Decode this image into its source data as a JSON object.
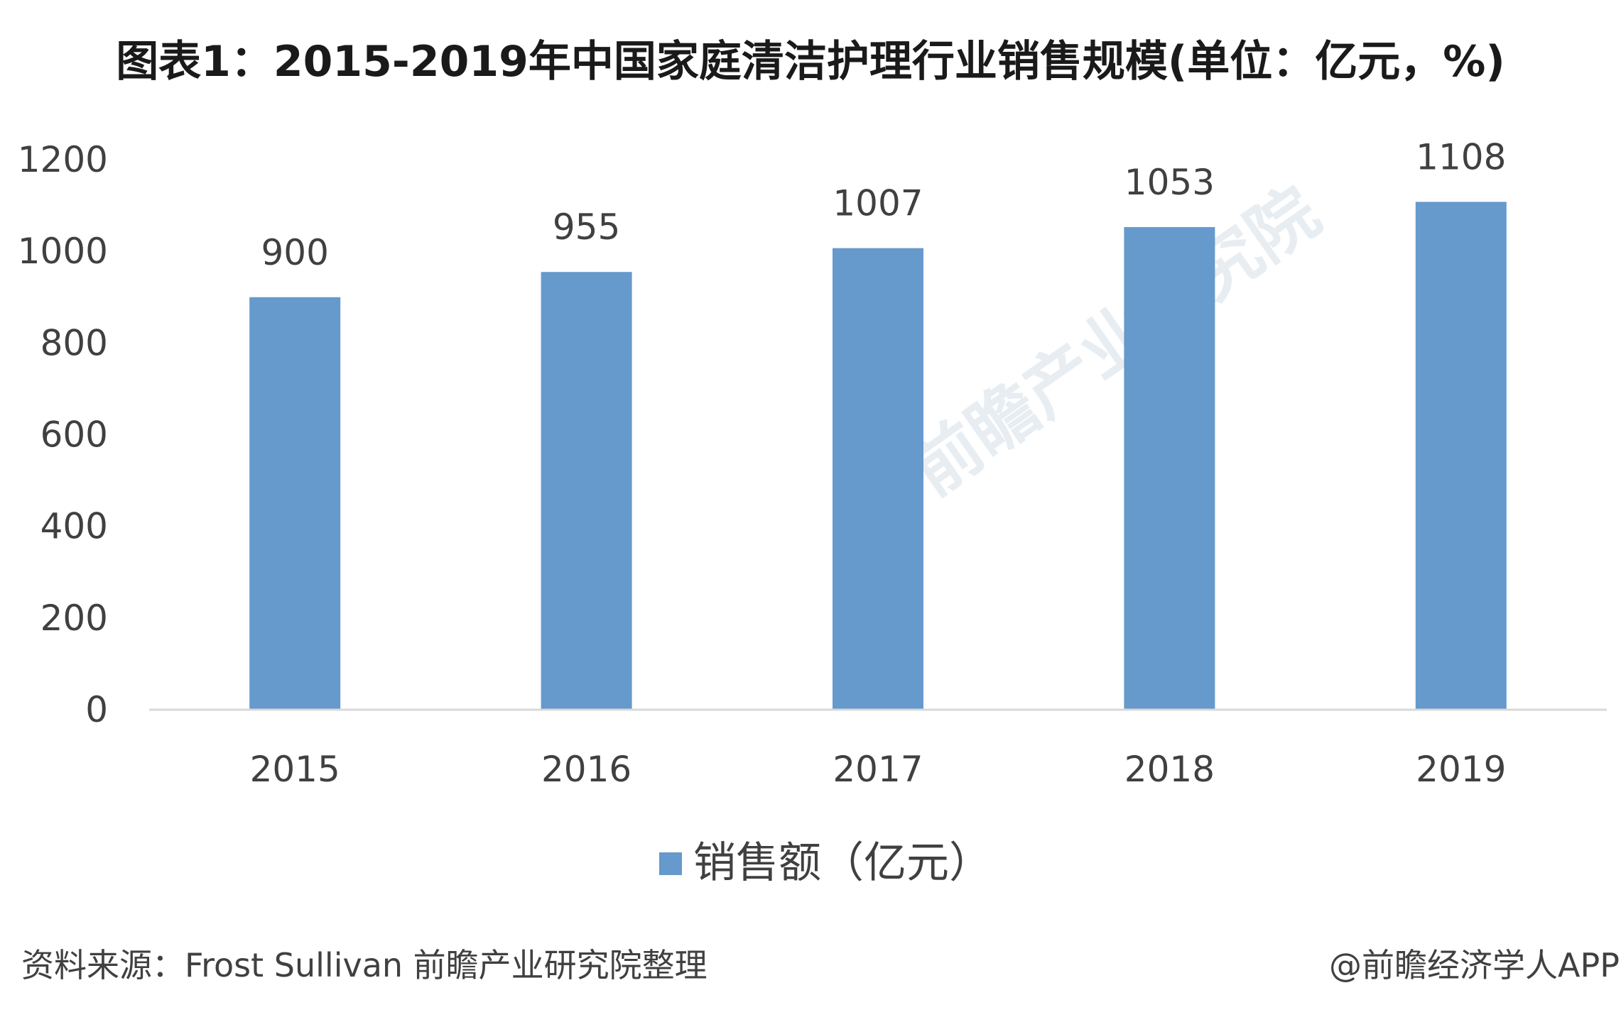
{
  "title": "图表1：2015-2019年中国家庭清洁护理行业销售规模(单位：亿元，%)",
  "watermark": "前瞻产业研究院",
  "source": "资料来源：Frost Sullivan 前瞻产业研究院整理",
  "credit": "@前瞻经济学人APP",
  "chart_data": {
    "type": "bar",
    "categories": [
      "2015",
      "2016",
      "2017",
      "2018",
      "2019"
    ],
    "series": [
      {
        "name": "销售额（亿元）",
        "values": [
          900,
          955,
          1007,
          1053,
          1108
        ],
        "color": "#6699cc"
      }
    ],
    "ylim": [
      0,
      1200
    ],
    "yticks": [
      0,
      200,
      400,
      600,
      800,
      1000,
      1200
    ],
    "grid": false,
    "legend_position": "bottom",
    "data_labels": true
  }
}
